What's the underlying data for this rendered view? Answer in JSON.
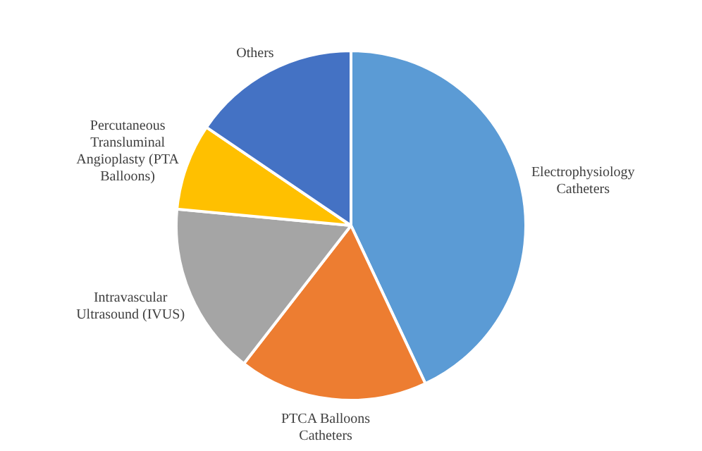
{
  "chart_data": {
    "type": "pie",
    "categories": [
      "Electrophysiology Catheters",
      "PTCA Balloons Catheters",
      "Intravascular Ultrasound (IVUS)",
      "Percutaneous Transluminal Angioplasty (PTA Balloons)",
      "Others"
    ],
    "values": [
      43,
      17.5,
      16,
      8,
      15.5
    ],
    "colors": [
      "#5b9bd5",
      "#ed7d31",
      "#a5a5a5",
      "#ffc000",
      "#4472c4"
    ],
    "legend": false
  }
}
